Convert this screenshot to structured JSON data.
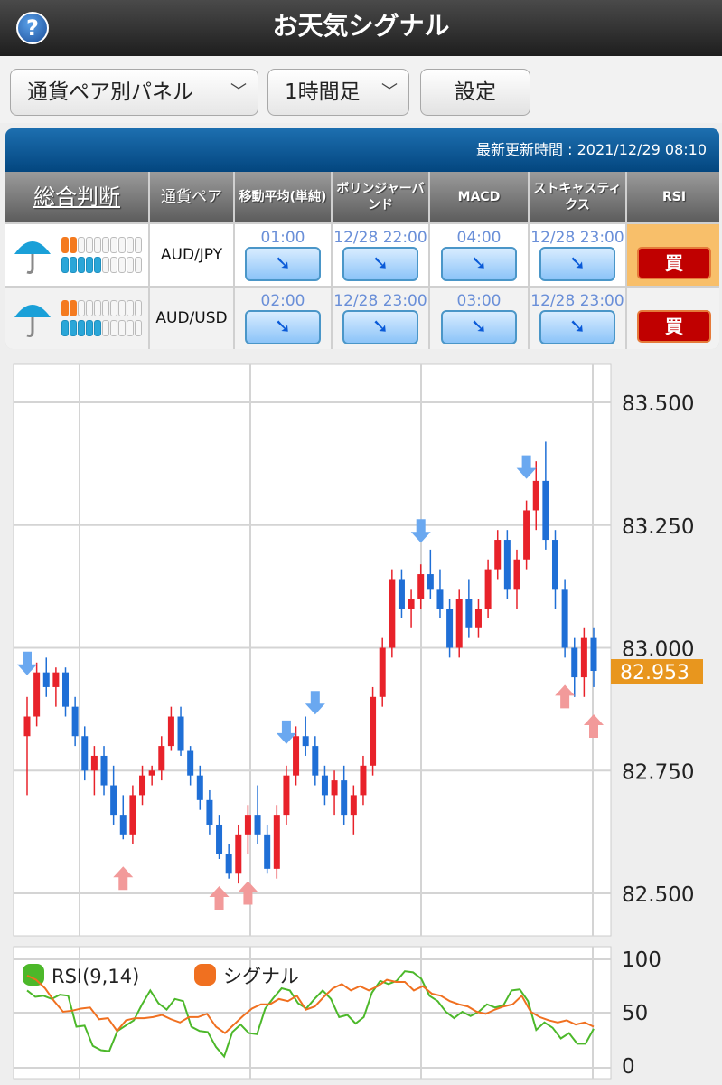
{
  "header": {
    "title": "お天気シグナル",
    "help_icon": "?"
  },
  "toolbar": {
    "panel_select": "通貨ペア別パネル",
    "timeframe_select": "1時間足",
    "settings_label": "設定"
  },
  "panel": {
    "updated": "最新更新時間 : 2021/12/29 08:10",
    "headers": [
      "総合判断",
      "通貨ペア",
      "移動平均(単純)",
      "ボリンジャーバンド",
      "MACD",
      "ストキャスティクス",
      "RSI"
    ],
    "rows": [
      {
        "weather": "umbrella",
        "pair": "AUD/JPY",
        "meter_buy": 2,
        "meter_sell": 5,
        "meter_total": 10,
        "signals": [
          {
            "time": "01:00",
            "dir": "down"
          },
          {
            "time": "12/28 22:00",
            "dir": "down"
          },
          {
            "time": "04:00",
            "dir": "down"
          },
          {
            "time": "12/28 23:00",
            "dir": "down"
          }
        ],
        "rsi": "買",
        "rsi_highlight": "#f8bf6a"
      },
      {
        "weather": "umbrella",
        "pair": "AUD/USD",
        "meter_buy": 2,
        "meter_sell": 5,
        "meter_total": 10,
        "signals": [
          {
            "time": "02:00",
            "dir": "down"
          },
          {
            "time": "12/28 23:00",
            "dir": "down"
          },
          {
            "time": "03:00",
            "dir": "down"
          },
          {
            "time": "12/28 23:00",
            "dir": "down"
          }
        ],
        "rsi": "買",
        "rsi_highlight": ""
      }
    ]
  },
  "chart_data": [
    {
      "type": "candlestick",
      "y_ticks": [
        "83.500",
        "83.250",
        "83.000",
        "82.750",
        "82.500"
      ],
      "ylim": [
        82.44,
        83.57
      ],
      "current_price": "82.953",
      "current_color": "#e8961e",
      "up_color": "#e8222a",
      "down_color": "#1f6fd6",
      "grid": true,
      "ohlc": [
        [
          82.82,
          82.9,
          82.7,
          82.86
        ],
        [
          82.86,
          82.97,
          82.84,
          82.95
        ],
        [
          82.95,
          82.98,
          82.9,
          82.92
        ],
        [
          82.92,
          82.96,
          82.88,
          82.95
        ],
        [
          82.95,
          82.96,
          82.86,
          82.88
        ],
        [
          82.88,
          82.9,
          82.8,
          82.82
        ],
        [
          82.82,
          82.84,
          82.73,
          82.75
        ],
        [
          82.75,
          82.8,
          82.7,
          82.78
        ],
        [
          82.78,
          82.8,
          82.7,
          82.72
        ],
        [
          82.72,
          82.76,
          82.64,
          82.66
        ],
        [
          82.66,
          82.7,
          82.61,
          82.62
        ],
        [
          82.62,
          82.72,
          82.6,
          82.7
        ],
        [
          82.7,
          82.76,
          82.68,
          82.74
        ],
        [
          82.74,
          82.76,
          82.72,
          82.75
        ],
        [
          82.75,
          82.82,
          82.73,
          82.8
        ],
        [
          82.8,
          82.88,
          82.79,
          82.86
        ],
        [
          82.86,
          82.88,
          82.78,
          82.79
        ],
        [
          82.79,
          82.8,
          82.72,
          82.74
        ],
        [
          82.74,
          82.76,
          82.67,
          82.69
        ],
        [
          82.69,
          82.71,
          82.62,
          82.64
        ],
        [
          82.64,
          82.66,
          82.57,
          82.58
        ],
        [
          82.58,
          82.6,
          82.53,
          82.54
        ],
        [
          82.54,
          82.64,
          82.52,
          82.62
        ],
        [
          82.62,
          82.68,
          82.58,
          82.66
        ],
        [
          82.66,
          82.72,
          82.6,
          82.62
        ],
        [
          82.62,
          82.64,
          82.54,
          82.55
        ],
        [
          82.55,
          82.68,
          82.53,
          82.66
        ],
        [
          82.66,
          82.76,
          82.64,
          82.74
        ],
        [
          82.74,
          82.84,
          82.72,
          82.82
        ],
        [
          82.82,
          82.86,
          82.78,
          82.8
        ],
        [
          82.8,
          82.82,
          82.72,
          82.74
        ],
        [
          82.74,
          82.76,
          82.68,
          82.7
        ],
        [
          82.7,
          82.75,
          82.66,
          82.73
        ],
        [
          82.73,
          82.76,
          82.64,
          82.66
        ],
        [
          82.66,
          82.72,
          82.62,
          82.7
        ],
        [
          82.7,
          82.78,
          82.68,
          82.76
        ],
        [
          82.76,
          82.92,
          82.74,
          82.9
        ],
        [
          82.9,
          83.02,
          82.88,
          83.0
        ],
        [
          83.0,
          83.16,
          82.98,
          83.14
        ],
        [
          83.14,
          83.16,
          83.06,
          83.08
        ],
        [
          83.08,
          83.12,
          83.04,
          83.1
        ],
        [
          83.1,
          83.17,
          83.08,
          83.15
        ],
        [
          83.15,
          83.2,
          83.1,
          83.12
        ],
        [
          83.12,
          83.16,
          83.06,
          83.08
        ],
        [
          83.08,
          83.1,
          82.98,
          83.0
        ],
        [
          83.0,
          83.12,
          82.98,
          83.1
        ],
        [
          83.1,
          83.14,
          83.02,
          83.04
        ],
        [
          83.04,
          83.1,
          83.02,
          83.08
        ],
        [
          83.08,
          83.18,
          83.06,
          83.16
        ],
        [
          83.16,
          83.24,
          83.14,
          83.22
        ],
        [
          83.22,
          83.24,
          83.1,
          83.12
        ],
        [
          83.12,
          83.2,
          83.08,
          83.18
        ],
        [
          83.18,
          83.3,
          83.16,
          83.28
        ],
        [
          83.28,
          83.38,
          83.24,
          83.34
        ],
        [
          83.34,
          83.42,
          83.2,
          83.22
        ],
        [
          83.22,
          83.24,
          83.08,
          83.12
        ],
        [
          83.12,
          83.14,
          82.98,
          83.0
        ],
        [
          83.0,
          83.02,
          82.9,
          82.94
        ],
        [
          82.94,
          83.04,
          82.9,
          83.02
        ],
        [
          83.02,
          83.04,
          82.92,
          82.953
        ]
      ],
      "signals": [
        {
          "index": 0,
          "type": "sell"
        },
        {
          "index": 27,
          "type": "sell"
        },
        {
          "index": 30,
          "type": "sell"
        },
        {
          "index": 41,
          "type": "sell"
        },
        {
          "index": 52,
          "type": "sell"
        },
        {
          "index": 10,
          "type": "buy"
        },
        {
          "index": 20,
          "type": "buy"
        },
        {
          "index": 23,
          "type": "buy"
        },
        {
          "index": 56,
          "type": "buy"
        },
        {
          "index": 59,
          "type": "buy"
        }
      ]
    },
    {
      "type": "line",
      "y_ticks": [
        "100",
        "50",
        "0"
      ],
      "ylim": [
        0,
        100
      ],
      "series": [
        {
          "name": "RSI(9,14)",
          "color": "#4cb82a",
          "values": [
            70,
            64,
            65,
            62,
            66,
            65,
            36,
            37,
            18,
            14,
            13,
            32,
            37,
            42,
            57,
            70,
            58,
            52,
            62,
            60,
            36,
            32,
            31,
            17,
            8,
            31,
            38,
            30,
            29,
            53,
            63,
            72,
            70,
            58,
            53,
            62,
            70,
            62,
            45,
            47,
            39,
            45,
            68,
            79,
            76,
            79,
            88,
            87,
            81,
            65,
            60,
            50,
            44,
            50,
            46,
            50,
            57,
            54,
            56,
            70,
            71,
            60,
            33,
            40,
            35,
            25,
            30,
            20,
            20,
            34
          ]
        },
        {
          "name": "シグナル",
          "color": "#f07020",
          "values": [
            84,
            80,
            72,
            60,
            50,
            51,
            53,
            54,
            43,
            44,
            32,
            42,
            44,
            44,
            45,
            47,
            43,
            40,
            45,
            45,
            48,
            36,
            30,
            38,
            46,
            53,
            57,
            57,
            62,
            60,
            65,
            52,
            55,
            64,
            72,
            76,
            70,
            74,
            70,
            74,
            80,
            78,
            78,
            70,
            74,
            67,
            65,
            60,
            57,
            55,
            50,
            48,
            52,
            55,
            57,
            65,
            50,
            45,
            42,
            40,
            42,
            38,
            40,
            36
          ]
        }
      ]
    }
  ]
}
